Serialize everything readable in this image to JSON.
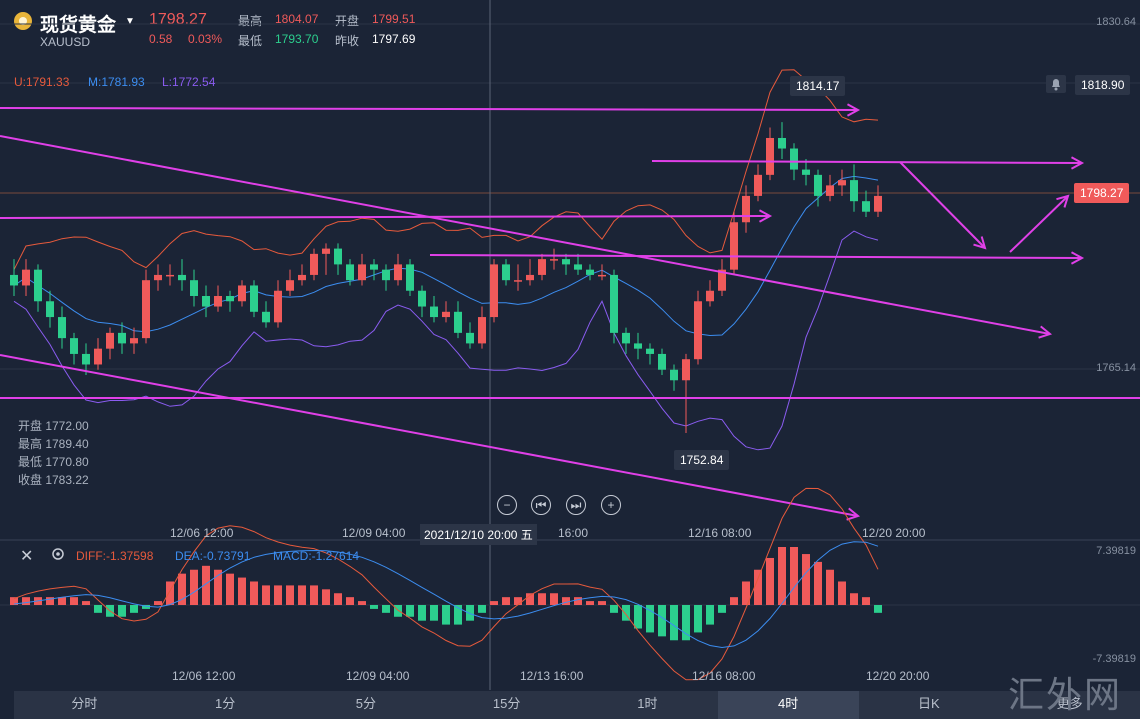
{
  "header": {
    "title": "现货黄金",
    "symbol": "XAUUSD",
    "price": "1798.27",
    "change": "0.58",
    "change_pct": "0.03%",
    "high_label": "最高",
    "high": "1804.07",
    "low_label": "最低",
    "low": "1793.70",
    "open_label": "开盘",
    "open": "1799.51",
    "prev_label": "昨收",
    "prev": "1797.69"
  },
  "bands": {
    "upper": "U:1791.33",
    "middle": "M:1781.93",
    "lower": "L:1772.54"
  },
  "ohlc_box": [
    "开盘 1772.00",
    "最高 1789.40",
    "最低 1770.80",
    "收盘 1783.22"
  ],
  "price_axis": {
    "top": "1830.64",
    "mid": "1765.14",
    "alert": "1818.90",
    "current": "1798.27"
  },
  "markers": {
    "high": "1814.17",
    "low": "1752.84"
  },
  "time_axis": [
    "12/06 12:00",
    "12/09 04:00",
    "2021/12/10 20:00 五",
    "16:00",
    "12/16 08:00",
    "12/20 20:00"
  ],
  "macd": {
    "diff": "DIFF:-1.37598",
    "dea": "DEA:-0.73791",
    "macd": "MACD:-1.27614",
    "top": "7.39819",
    "bottom": "-7.39819"
  },
  "macd_time_axis": [
    "12/06 12:00",
    "12/09 04:00",
    "12/13 16:00",
    "12/16 08:00",
    "12/20 20:00"
  ],
  "tabs": [
    "分时",
    "1分",
    "5分",
    "15分",
    "1时",
    "4时",
    "日K",
    "更多"
  ],
  "active_tab": "4时",
  "watermark": "汇外网",
  "colors": {
    "up": "#f05a5a",
    "down": "#2ccf8e",
    "trendline": "#e040e8",
    "upper": "#e65a3c",
    "middle": "#3c8df0",
    "lower": "#8a5cf0"
  },
  "chart_data": {
    "type": "candlestick",
    "candles": [
      [
        1783,
        1781,
        1786,
        1779
      ],
      [
        1781,
        1784,
        1786,
        1779
      ],
      [
        1784,
        1778,
        1785,
        1776
      ],
      [
        1778,
        1775,
        1780,
        1773
      ],
      [
        1775,
        1771,
        1777,
        1769
      ],
      [
        1771,
        1768,
        1772,
        1766
      ],
      [
        1768,
        1766,
        1770,
        1764
      ],
      [
        1766,
        1769,
        1771,
        1765
      ],
      [
        1769,
        1772,
        1773,
        1767
      ],
      [
        1772,
        1770,
        1774,
        1768
      ],
      [
        1770,
        1771,
        1773,
        1768
      ],
      [
        1771,
        1782,
        1784,
        1770
      ],
      [
        1782,
        1783,
        1785,
        1780
      ],
      [
        1783,
        1783,
        1785,
        1781
      ],
      [
        1783,
        1782,
        1786,
        1780
      ],
      [
        1782,
        1779,
        1784,
        1777
      ],
      [
        1779,
        1777,
        1781,
        1775
      ],
      [
        1777,
        1779,
        1781,
        1776
      ],
      [
        1779,
        1778,
        1780,
        1776
      ],
      [
        1778,
        1781,
        1782,
        1777
      ],
      [
        1781,
        1776,
        1782,
        1775
      ],
      [
        1776,
        1774,
        1778,
        1773
      ],
      [
        1774,
        1780,
        1782,
        1773
      ],
      [
        1780,
        1782,
        1784,
        1779
      ],
      [
        1782,
        1783,
        1785,
        1781
      ],
      [
        1783,
        1787,
        1788,
        1782
      ],
      [
        1787,
        1788,
        1789,
        1783
      ],
      [
        1788,
        1785,
        1789,
        1783
      ],
      [
        1785,
        1782,
        1786,
        1781
      ],
      [
        1782,
        1785,
        1787,
        1781
      ],
      [
        1785,
        1784,
        1786,
        1782
      ],
      [
        1784,
        1782,
        1785,
        1780
      ],
      [
        1782,
        1785,
        1787,
        1781
      ],
      [
        1785,
        1780,
        1786,
        1779
      ],
      [
        1780,
        1777,
        1781,
        1775
      ],
      [
        1777,
        1775,
        1779,
        1774
      ],
      [
        1775,
        1776,
        1778,
        1774
      ],
      [
        1776,
        1772,
        1778,
        1771
      ],
      [
        1772,
        1770,
        1774,
        1769
      ],
      [
        1770,
        1775,
        1777,
        1769
      ],
      [
        1775,
        1785,
        1786,
        1774
      ],
      [
        1785,
        1782,
        1786,
        1781
      ],
      [
        1782,
        1782,
        1785,
        1780
      ],
      [
        1782,
        1783,
        1786,
        1781
      ],
      [
        1783,
        1786,
        1787,
        1782
      ],
      [
        1786,
        1786,
        1788,
        1784
      ],
      [
        1786,
        1785,
        1787,
        1783
      ],
      [
        1785,
        1784,
        1787,
        1783
      ],
      [
        1784,
        1783,
        1785,
        1782
      ],
      [
        1783,
        1783,
        1785,
        1782
      ],
      [
        1783,
        1772,
        1784,
        1770
      ],
      [
        1772,
        1770,
        1773,
        1768
      ],
      [
        1770,
        1769,
        1772,
        1767
      ],
      [
        1769,
        1768,
        1770,
        1766
      ],
      [
        1768,
        1765,
        1769,
        1764
      ],
      [
        1765,
        1763,
        1766,
        1761
      ],
      [
        1763,
        1767,
        1768,
        1753
      ],
      [
        1767,
        1778,
        1780,
        1766
      ],
      [
        1778,
        1780,
        1782,
        1777
      ],
      [
        1780,
        1784,
        1786,
        1779
      ],
      [
        1784,
        1793,
        1795,
        1783
      ],
      [
        1793,
        1798,
        1800,
        1791
      ],
      [
        1798,
        1802,
        1804,
        1797
      ],
      [
        1802,
        1809,
        1811,
        1801
      ],
      [
        1809,
        1807,
        1812,
        1805
      ],
      [
        1807,
        1803,
        1808,
        1801
      ],
      [
        1803,
        1802,
        1805,
        1800
      ],
      [
        1802,
        1798,
        1803,
        1796
      ],
      [
        1798,
        1800,
        1802,
        1797
      ],
      [
        1800,
        1801,
        1803,
        1798
      ],
      [
        1801,
        1797,
        1804,
        1795
      ],
      [
        1797,
        1795,
        1799,
        1794
      ],
      [
        1795,
        1798,
        1800,
        1794
      ]
    ],
    "macd_hist": [
      1,
      1,
      1,
      1,
      1,
      1,
      0.5,
      -1,
      -1.5,
      -1.5,
      -1,
      -0.5,
      0.5,
      3,
      4,
      4.5,
      5,
      4.5,
      4,
      3.5,
      3,
      2.5,
      2.5,
      2.5,
      2.5,
      2.5,
      2,
      1.5,
      1,
      0.5,
      -0.5,
      -1,
      -1.5,
      -1.5,
      -2,
      -2,
      -2.5,
      -2.5,
      -2,
      -1,
      0.5,
      1,
      1,
      1.5,
      1.5,
      1.5,
      1,
      1,
      0.5,
      0.5,
      -1,
      -2,
      -3,
      -3.5,
      -4,
      -4.5,
      -4.5,
      -3.5,
      -2.5,
      -1,
      1,
      3,
      4.5,
      6,
      7.4,
      7.4,
      6.5,
      5.5,
      4.5,
      3,
      1.5,
      1,
      -1
    ]
  }
}
